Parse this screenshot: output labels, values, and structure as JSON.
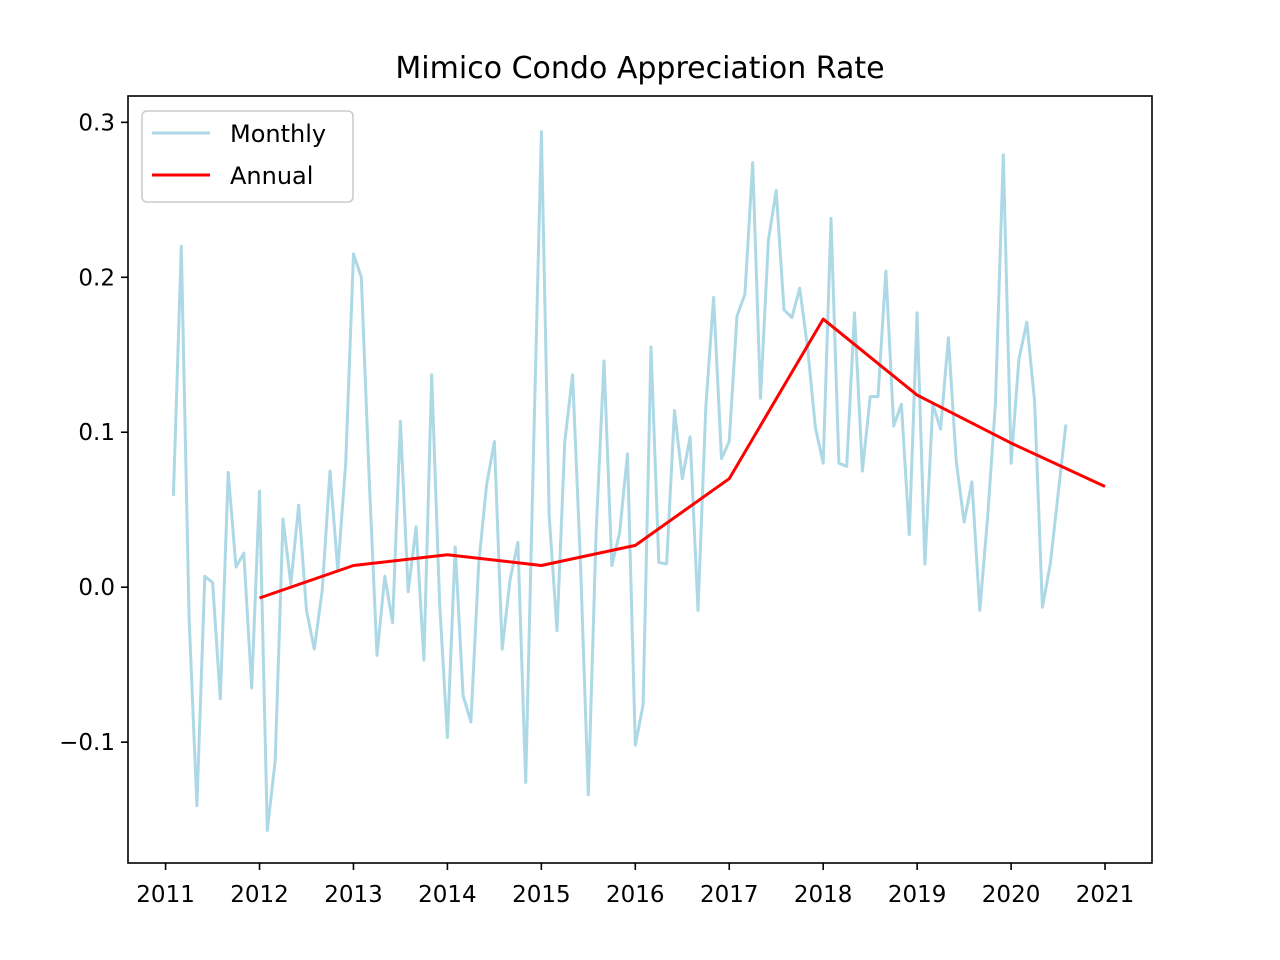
{
  "chart_data": {
    "type": "line",
    "title": "Mimico Condo Appreciation Rate",
    "xlabel": "",
    "ylabel": "",
    "x_range": [
      2010.6,
      2021.5
    ],
    "y_range": [
      -0.178,
      0.317
    ],
    "x_ticks": [
      2011,
      2012,
      2013,
      2014,
      2015,
      2016,
      2017,
      2018,
      2019,
      2020,
      2021
    ],
    "x_tick_labels": [
      "2011",
      "2012",
      "2013",
      "2014",
      "2015",
      "2016",
      "2017",
      "2018",
      "2019",
      "2020",
      "2021"
    ],
    "y_ticks": [
      -0.1,
      0.0,
      0.1,
      0.2,
      0.3
    ],
    "y_tick_labels": [
      "−0.1",
      "0.0",
      "0.1",
      "0.2",
      "0.3"
    ],
    "grid": false,
    "legend_position": "top-left",
    "series": [
      {
        "name": "Monthly",
        "color": "#add8e6",
        "x": [
          2011.083,
          2011.167,
          2011.25,
          2011.333,
          2011.417,
          2011.5,
          2011.583,
          2011.667,
          2011.75,
          2011.833,
          2011.917,
          2012.0,
          2012.083,
          2012.167,
          2012.25,
          2012.333,
          2012.417,
          2012.5,
          2012.583,
          2012.667,
          2012.75,
          2012.833,
          2012.917,
          2013.0,
          2013.083,
          2013.167,
          2013.25,
          2013.333,
          2013.417,
          2013.5,
          2013.583,
          2013.667,
          2013.75,
          2013.833,
          2013.917,
          2014.0,
          2014.083,
          2014.167,
          2014.25,
          2014.333,
          2014.417,
          2014.5,
          2014.583,
          2014.667,
          2014.75,
          2014.833,
          2014.917,
          2015.0,
          2015.083,
          2015.167,
          2015.25,
          2015.333,
          2015.417,
          2015.5,
          2015.583,
          2015.667,
          2015.75,
          2015.833,
          2015.917,
          2016.0,
          2016.083,
          2016.167,
          2016.25,
          2016.333,
          2016.417,
          2016.5,
          2016.583,
          2016.667,
          2016.75,
          2016.833,
          2016.917,
          2017.0,
          2017.083,
          2017.167,
          2017.25,
          2017.333,
          2017.417,
          2017.5,
          2017.583,
          2017.667,
          2017.75,
          2017.833,
          2017.917,
          2018.0,
          2018.083,
          2018.167,
          2018.25,
          2018.333,
          2018.417,
          2018.5,
          2018.583,
          2018.667,
          2018.75,
          2018.833,
          2018.917,
          2019.0,
          2019.083,
          2019.167,
          2019.25,
          2019.333,
          2019.417,
          2019.5,
          2019.583,
          2019.667,
          2019.75,
          2019.833,
          2019.917,
          2020.0,
          2020.083,
          2020.167,
          2020.25,
          2020.333,
          2020.417,
          2020.5,
          2020.583
        ],
        "y": [
          0.059,
          0.22,
          -0.02,
          -0.141,
          0.007,
          0.003,
          -0.072,
          0.074,
          0.013,
          0.022,
          -0.065,
          0.062,
          -0.157,
          -0.112,
          0.044,
          0.002,
          0.053,
          -0.015,
          -0.04,
          -0.002,
          0.075,
          0.011,
          0.08,
          0.215,
          0.2,
          0.07,
          -0.044,
          0.007,
          -0.023,
          0.107,
          -0.003,
          0.039,
          -0.047,
          0.137,
          -0.01,
          -0.097,
          0.026,
          -0.07,
          -0.087,
          0.015,
          0.066,
          0.094,
          -0.04,
          0.005,
          0.029,
          -0.126,
          0.09,
          0.294,
          0.046,
          -0.028,
          0.094,
          0.137,
          0.015,
          -0.134,
          0.035,
          0.146,
          0.014,
          0.035,
          0.086,
          -0.102,
          -0.076,
          0.155,
          0.016,
          0.015,
          0.114,
          0.07,
          0.097,
          -0.015,
          0.116,
          0.187,
          0.083,
          0.094,
          0.175,
          0.189,
          0.274,
          0.122,
          0.224,
          0.256,
          0.179,
          0.174,
          0.193,
          0.155,
          0.103,
          0.08,
          0.238,
          0.08,
          0.078,
          0.177,
          0.075,
          0.123,
          0.123,
          0.204,
          0.104,
          0.118,
          0.034,
          0.177,
          0.015,
          0.118,
          0.102,
          0.161,
          0.081,
          0.042,
          0.068,
          -0.015,
          0.045,
          0.118,
          0.279,
          0.08,
          0.147,
          0.171,
          0.12,
          -0.013,
          0.015,
          0.06,
          0.105
        ]
      },
      {
        "name": "Annual",
        "color": "#ff0000",
        "x": [
          2012.0,
          2013.0,
          2014.0,
          2015.0,
          2016.0,
          2017.0,
          2018.0,
          2019.0,
          2020.0,
          2021.0
        ],
        "y": [
          -0.007,
          0.014,
          0.021,
          0.014,
          0.027,
          0.07,
          0.173,
          0.124,
          0.093,
          0.065
        ]
      }
    ]
  }
}
